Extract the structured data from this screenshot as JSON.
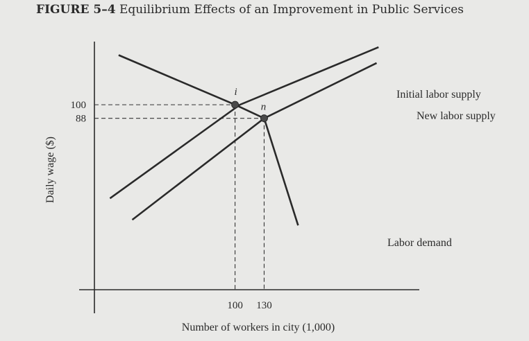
{
  "figure": {
    "label": "FIGURE 5–4",
    "caption": "Equilibrium Effects of an Improvement in Public Services"
  },
  "chart_data": {
    "type": "line",
    "title": "FIGURE 5–4 Equilibrium Effects of an Improvement in Public Services",
    "xlabel": "Number of workers in city (1,000)",
    "ylabel": "Daily wage ($)",
    "x_ticks": [
      100,
      130
    ],
    "y_ticks": [
      100,
      88
    ],
    "xlim": [
      -45,
      290
    ],
    "ylim": [
      -64,
      156
    ],
    "grid": false,
    "series": [
      {
        "name": "Initial labor supply",
        "x": [
          -29,
          105,
          248
        ],
        "y": [
          17,
          100,
          151
        ]
      },
      {
        "name": "New labor supply",
        "x": [
          -6,
          130,
          246
        ],
        "y": [
          -2,
          88,
          137
        ]
      },
      {
        "name": "Labor demand",
        "x": [
          -20,
          100,
          130,
          165
        ],
        "y": [
          144,
          100,
          88,
          -7
        ]
      }
    ],
    "points": [
      {
        "label": "i",
        "x": 100,
        "y": 100
      },
      {
        "label": "n",
        "x": 130,
        "y": 88
      }
    ]
  }
}
